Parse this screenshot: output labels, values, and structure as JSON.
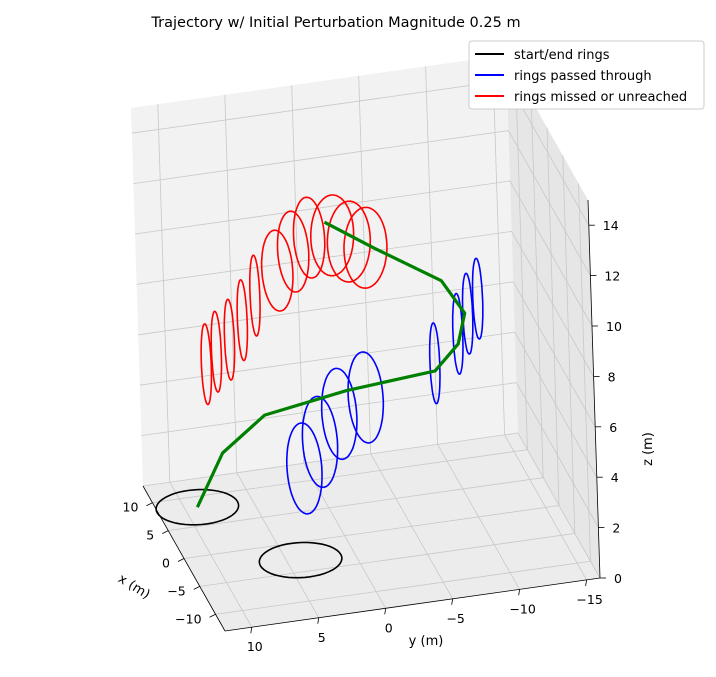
{
  "chart_data": {
    "type": "line3d",
    "title": "Trajectory w/ Initial Perturbation Magnitude 0.25 m",
    "xlabel": "x (m)",
    "ylabel": "y (m)",
    "zlabel": "z (m)",
    "x_ticks": [
      "10",
      "5",
      "0",
      "−5",
      "−10"
    ],
    "y_ticks": [
      "10",
      "5",
      "0",
      "−5",
      "−10",
      "−15"
    ],
    "z_ticks": [
      "0",
      "2",
      "4",
      "6",
      "8",
      "10",
      "12",
      "14"
    ],
    "xlim": [
      -13,
      13
    ],
    "ylim": [
      -16,
      12
    ],
    "zlim": [
      0,
      15
    ],
    "grid": true,
    "legend_position": "top-right",
    "legend": [
      {
        "label": "start/end rings",
        "color": "#000000"
      },
      {
        "label": "rings passed through",
        "color": "#0000ff"
      },
      {
        "label": "rings missed or unreached",
        "color": "#ff0000"
      }
    ],
    "series": [
      {
        "name": "start/end rings",
        "color": "#000000",
        "rings": [
          {
            "center": [
              -3,
              4,
              0
            ],
            "radius": 3,
            "normal": "z"
          },
          {
            "center": [
              4,
              10,
              1
            ],
            "radius": 3,
            "normal": "z"
          }
        ]
      },
      {
        "name": "rings passed through",
        "color": "#0000ff",
        "rings": [
          {
            "center": [
              -3,
              3.5,
              3.6
            ],
            "radius": 1.8,
            "normal": "tilted"
          },
          {
            "center": [
              -4,
              2.5,
              4.8
            ],
            "radius": 1.8,
            "normal": "tilted"
          },
          {
            "center": [
              -4,
              1.0,
              5.8
            ],
            "radius": 1.8,
            "normal": "tilted"
          },
          {
            "center": [
              -4,
              -1.0,
              6.3
            ],
            "radius": 1.8,
            "normal": "tilted"
          },
          {
            "center": [
              -5,
              -6,
              7.5
            ],
            "radius": 1.6,
            "normal": "y"
          },
          {
            "center": [
              -4,
              -8,
              8.3
            ],
            "radius": 1.6,
            "normal": "y"
          },
          {
            "center": [
              -3,
              -9,
              8.8
            ],
            "radius": 1.6,
            "normal": "y"
          },
          {
            "center": [
              -2,
              -10,
              9.1
            ],
            "radius": 1.6,
            "normal": "y"
          }
        ]
      },
      {
        "name": "rings missed or unreached",
        "color": "#ff0000",
        "rings": [
          {
            "center": [
              -1,
              -2,
              11.5
            ],
            "radius": 1.6,
            "normal": "x"
          },
          {
            "center": [
              0,
              -1,
              11.6
            ],
            "radius": 1.6,
            "normal": "x"
          },
          {
            "center": [
              1,
              0,
              11.7
            ],
            "radius": 1.6,
            "normal": "x"
          },
          {
            "center": [
              2,
              1.5,
              11.5
            ],
            "radius": 1.6,
            "normal": "tilted"
          },
          {
            "center": [
              3,
              2.5,
              10.8
            ],
            "radius": 1.6,
            "normal": "tilted"
          },
          {
            "center": [
              4,
              3.5,
              9.9
            ],
            "radius": 1.6,
            "normal": "tilted"
          },
          {
            "center": [
              5,
              5,
              8.8
            ],
            "radius": 1.6,
            "normal": "y"
          },
          {
            "center": [
              5,
              6,
              7.9
            ],
            "radius": 1.6,
            "normal": "y"
          },
          {
            "center": [
              5,
              7,
              7.2
            ],
            "radius": 1.6,
            "normal": "y"
          },
          {
            "center": [
              5,
              8,
              6.8
            ],
            "radius": 1.6,
            "normal": "y"
          },
          {
            "center": [
              4,
              9,
              6.6
            ],
            "radius": 1.6,
            "normal": "y"
          }
        ]
      },
      {
        "name": "trajectory",
        "color": "#008000",
        "points": [
          [
            4,
            10,
            1
          ],
          [
            4,
            8,
            3
          ],
          [
            3,
            5,
            4.5
          ],
          [
            -2,
            0,
            6.2
          ],
          [
            -5,
            -6,
            7.2
          ],
          [
            -4,
            -8,
            7.9
          ],
          [
            -2,
            -9,
            8.6
          ],
          [
            1,
            -8,
            9.3
          ],
          [
            5,
            -4,
            10
          ],
          [
            8,
            -1,
            10.6
          ]
        ]
      }
    ]
  }
}
